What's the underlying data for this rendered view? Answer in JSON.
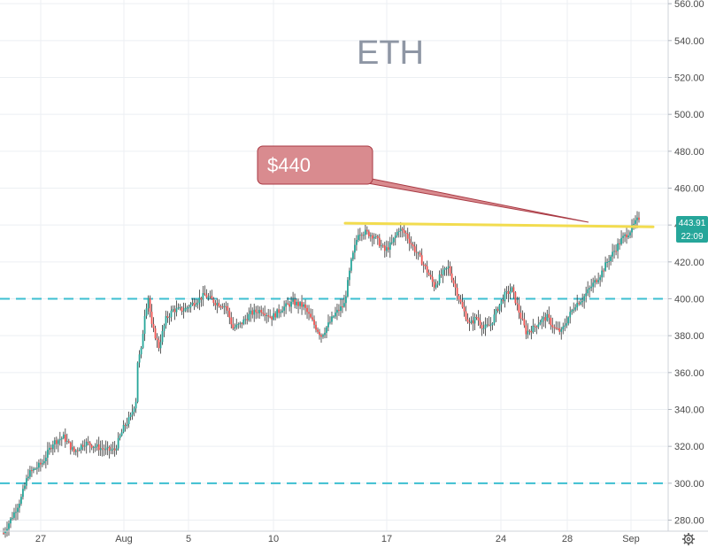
{
  "chart_data": {
    "type": "candlestick",
    "title": "ETH",
    "x_ticks": [
      "27",
      "Aug",
      "5",
      "10",
      "17",
      "24",
      "28",
      "Sep"
    ],
    "y_ticks": [
      280,
      300,
      320,
      340,
      360,
      380,
      400,
      420,
      440,
      460,
      480,
      500,
      520,
      540,
      560
    ],
    "y_tick_labels": [
      "280.00",
      "300.00",
      "320.00",
      "340.00",
      "360.00",
      "380.00",
      "400.00",
      "420.00",
      "440.00",
      "460.00",
      "480.00",
      "500.00",
      "520.00",
      "540.00",
      "560.00"
    ],
    "ylim": [
      274,
      562
    ],
    "grid": true,
    "support_levels": [
      300,
      400
    ],
    "resistance_line": {
      "from": 441,
      "to": 439
    },
    "annotation": {
      "text": "$440"
    },
    "last_price": "443.91",
    "countdown": "22:09",
    "colors": {
      "up": "#26a69a",
      "down": "#ef5350",
      "wick": "#333333",
      "support": "#3dbfd1",
      "resistance": "#f2dc4f",
      "callout_fill": "#d98b8f",
      "callout_stroke": "#a93a44",
      "badge_up": "#26a69a"
    },
    "ohlc_path": [
      [
        0,
        273
      ],
      [
        6,
        284
      ],
      [
        10,
        292
      ],
      [
        14,
        305
      ],
      [
        22,
        311
      ],
      [
        28,
        322
      ],
      [
        34,
        325
      ],
      [
        40,
        317
      ],
      [
        46,
        322
      ],
      [
        52,
        320
      ],
      [
        58,
        318
      ],
      [
        63,
        318
      ],
      [
        68,
        330
      ],
      [
        72,
        336
      ],
      [
        75,
        345
      ],
      [
        76,
        366
      ],
      [
        78,
        372
      ],
      [
        80,
        392
      ],
      [
        82,
        401
      ],
      [
        84,
        385
      ],
      [
        86,
        380
      ],
      [
        88,
        374
      ],
      [
        92,
        389
      ],
      [
        96,
        394
      ],
      [
        102,
        394
      ],
      [
        108,
        398
      ],
      [
        114,
        402
      ],
      [
        120,
        398
      ],
      [
        126,
        396
      ],
      [
        130,
        384
      ],
      [
        134,
        386
      ],
      [
        140,
        392
      ],
      [
        146,
        394
      ],
      [
        152,
        390
      ],
      [
        158,
        395
      ],
      [
        164,
        398
      ],
      [
        170,
        396
      ],
      [
        176,
        386
      ],
      [
        180,
        380
      ],
      [
        184,
        386
      ],
      [
        188,
        392
      ],
      [
        193,
        397
      ],
      [
        197,
        420
      ],
      [
        201,
        436
      ],
      [
        205,
        436
      ],
      [
        210,
        434
      ],
      [
        216,
        426
      ],
      [
        220,
        430
      ],
      [
        224,
        438
      ],
      [
        228,
        435
      ],
      [
        232,
        428
      ],
      [
        236,
        422
      ],
      [
        240,
        415
      ],
      [
        244,
        407
      ],
      [
        248,
        413
      ],
      [
        252,
        417
      ],
      [
        256,
        406
      ],
      [
        260,
        395
      ],
      [
        264,
        386
      ],
      [
        268,
        390
      ],
      [
        272,
        384
      ],
      [
        276,
        386
      ],
      [
        280,
        395
      ],
      [
        284,
        402
      ],
      [
        288,
        405
      ],
      [
        292,
        393
      ],
      [
        296,
        382
      ],
      [
        300,
        384
      ],
      [
        304,
        388
      ],
      [
        308,
        390
      ],
      [
        312,
        384
      ],
      [
        316,
        382
      ],
      [
        320,
        390
      ],
      [
        324,
        397
      ],
      [
        328,
        400
      ],
      [
        334,
        408
      ],
      [
        338,
        413
      ],
      [
        342,
        420
      ],
      [
        346,
        426
      ],
      [
        350,
        432
      ],
      [
        355,
        437
      ],
      [
        360,
        443.91
      ]
    ]
  }
}
